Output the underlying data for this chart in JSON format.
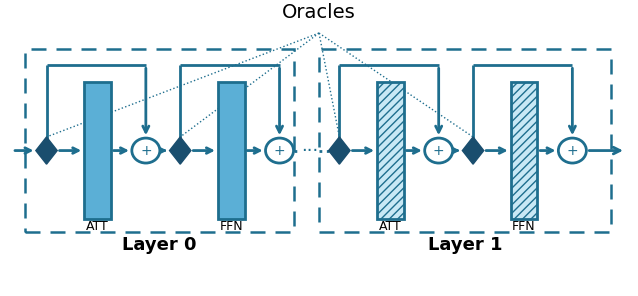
{
  "fig_width": 6.38,
  "fig_height": 2.96,
  "dpi": 100,
  "title": "Oracles",
  "layer0_label": "Layer 0",
  "layer1_label": "Layer 1",
  "att_label": "ATT",
  "ffn_label": "FFN",
  "main_color": "#1e6e8e",
  "block_color_solid": "#5bafd6",
  "block_color_hatch_bg": "#c8e8f5",
  "hatch_pattern": "////",
  "dark_color": "#1a4e6e",
  "arrow_color": "#1e6e8e",
  "dashed_box_color": "#2878a0"
}
